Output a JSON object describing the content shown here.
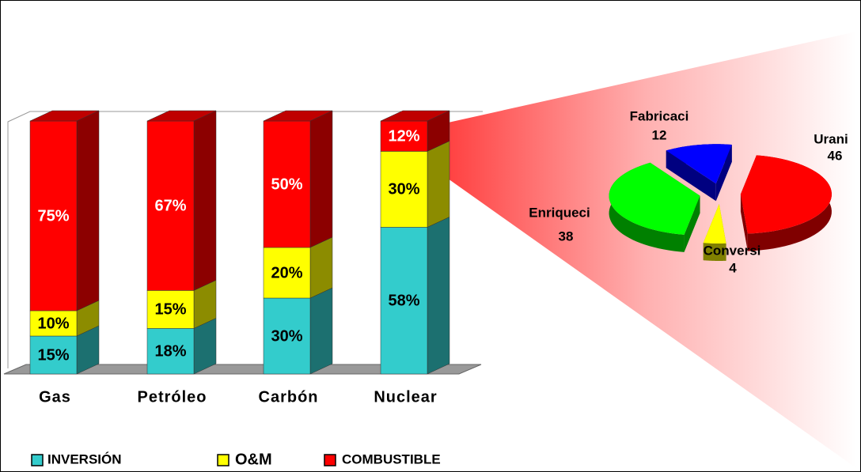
{
  "chart_data": [
    {
      "type": "bar",
      "stacked": true,
      "categories": [
        "Gas",
        "Petróleo",
        "Carbón",
        "Nuclear"
      ],
      "series": [
        {
          "name": "INVERSIÓN",
          "color": "#33cccc",
          "values": [
            15,
            18,
            30,
            58
          ],
          "value_labels": [
            "15%",
            "18%",
            "30%",
            "58%"
          ]
        },
        {
          "name": "O&M",
          "color": "#ffff00",
          "values": [
            10,
            15,
            20,
            30
          ],
          "value_labels": [
            "10%",
            "15%",
            "20%",
            "30%"
          ]
        },
        {
          "name": "COMBUSTIBLE",
          "color": "#ff0000",
          "values": [
            75,
            67,
            50,
            12
          ],
          "value_labels": [
            "75%",
            "67%",
            "50%",
            "12%"
          ]
        }
      ],
      "ylim": [
        0,
        100
      ]
    },
    {
      "type": "pie",
      "categories": [
        "Urani",
        "Conversi",
        "Enriqueci",
        "Fabricaci"
      ],
      "values": [
        46,
        4,
        38,
        12
      ],
      "colors": [
        "#ff0000",
        "#ffff00",
        "#00ff00",
        "#0000ff"
      ]
    }
  ]
}
